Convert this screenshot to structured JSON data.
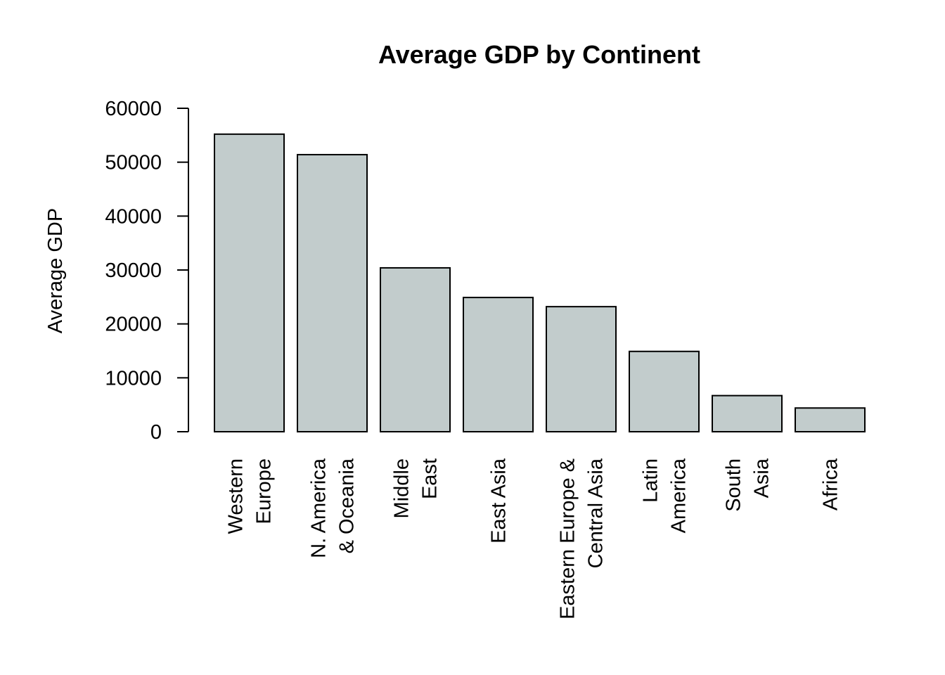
{
  "chart_data": {
    "type": "bar",
    "title": "Average GDP by Continent",
    "xlabel": "",
    "ylabel": "Average GDP",
    "ylim": [
      0,
      60000
    ],
    "yticks": [
      0,
      10000,
      20000,
      30000,
      40000,
      50000,
      60000
    ],
    "ytick_labels": [
      "0",
      "10000",
      "20000",
      "30000",
      "40000",
      "50000",
      "60000"
    ],
    "categories": [
      "Western Europe",
      "N. America & Oceania",
      "Middle East",
      "East Asia",
      "Eastern Europe & Central Asia",
      "Latin America",
      "South Asia",
      "Africa"
    ],
    "category_label_lines": [
      [
        "Western",
        "Europe"
      ],
      [
        "N. America",
        "& Oceania"
      ],
      [
        "Middle",
        "East"
      ],
      [
        "East Asia"
      ],
      [
        "Eastern Europe &",
        "Central Asia"
      ],
      [
        "Latin",
        "America"
      ],
      [
        "South",
        "Asia"
      ],
      [
        "Africa"
      ]
    ],
    "values": [
      55200,
      51400,
      30400,
      24900,
      23200,
      14900,
      6700,
      4400
    ],
    "bar_color": "#c2cccc",
    "bar_edge_color": "#000000",
    "grid": false,
    "legend": "none"
  }
}
